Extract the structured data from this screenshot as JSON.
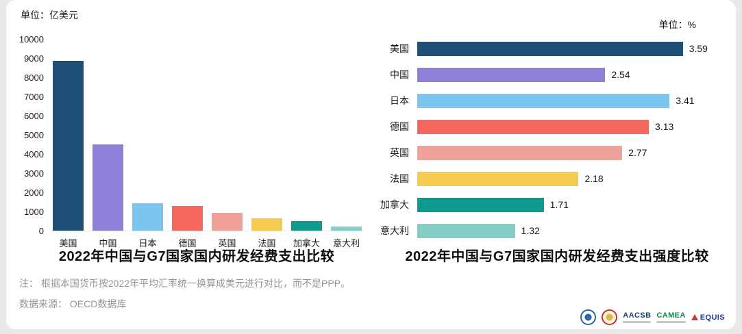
{
  "chart_data": [
    {
      "type": "bar",
      "title": "2022年中国与G7国家国内研发经费支出比较",
      "unit_label": "单位：亿美元",
      "categories": [
        "美国",
        "中国",
        "日本",
        "德国",
        "英国",
        "法国",
        "加拿大",
        "意大利"
      ],
      "values": [
        8850,
        4500,
        1420,
        1300,
        930,
        660,
        510,
        220
      ],
      "ylim": [
        0,
        10000
      ],
      "yticks": [
        0,
        1000,
        2000,
        3000,
        4000,
        5000,
        6000,
        7000,
        8000,
        9000,
        10000
      ],
      "bar_colors": [
        "#1f4e79",
        "#8c80d8",
        "#7cc5ee",
        "#f4685e",
        "#efa19a",
        "#f5cc50",
        "#0e9a8e",
        "#84cec5"
      ],
      "grid": false,
      "legend": false
    },
    {
      "type": "bar-horizontal",
      "title": "2022年中国与G7国家国内研发经费支出强度比较",
      "unit_label": "单位：%",
      "categories": [
        "美国",
        "中国",
        "日本",
        "德国",
        "英国",
        "法国",
        "加拿大",
        "意大利"
      ],
      "values": [
        3.59,
        2.54,
        3.41,
        3.13,
        2.77,
        2.18,
        1.71,
        1.32
      ],
      "value_labels": [
        "3.59",
        "2.54",
        "3.41",
        "3.13",
        "2.77",
        "2.18",
        "1.71",
        "1.32"
      ],
      "xlim": [
        0,
        4
      ],
      "bar_colors": [
        "#1f4e79",
        "#8c80d8",
        "#7cc5ee",
        "#f4685e",
        "#efa19a",
        "#f5cc50",
        "#0e9a8e",
        "#84cec5"
      ],
      "grid": false,
      "legend": false
    }
  ],
  "footnotes": {
    "note": "注： 根据本国货币按2022年平均汇率统一换算成美元进行对比，而不是PPP。",
    "source": "数据来源： OECD数据库"
  },
  "logos": {
    "aacsb": "AACSB",
    "camea": "CAMEA",
    "equis": "EQUIS"
  }
}
